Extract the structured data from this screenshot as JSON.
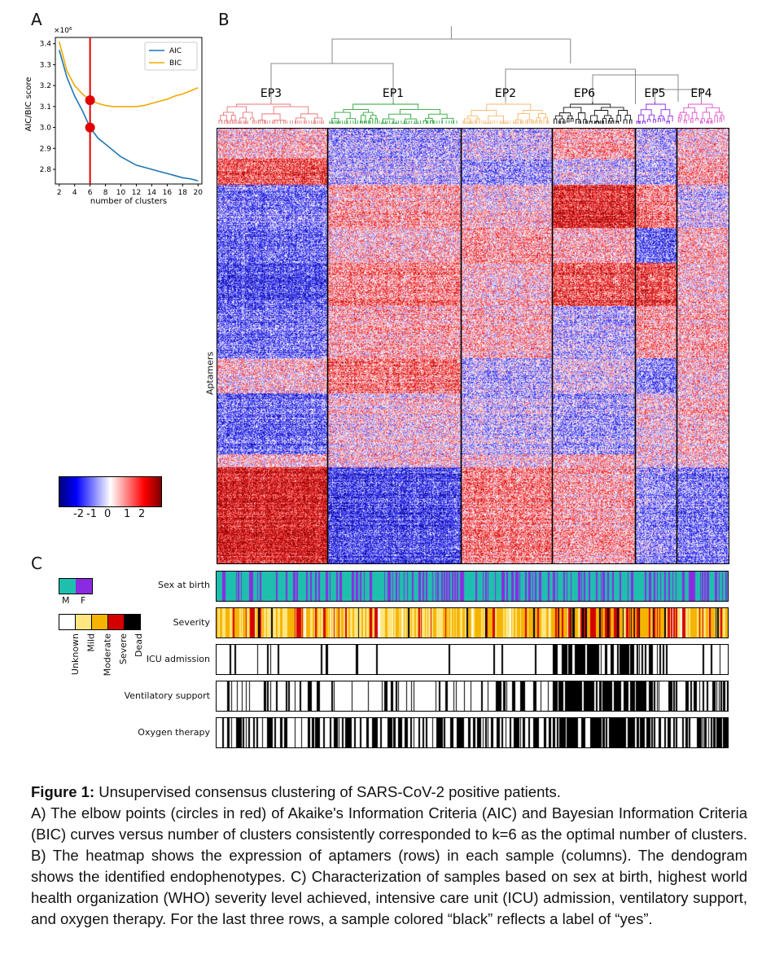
{
  "panels": {
    "a_letter": "A",
    "b_letter": "B",
    "c_letter": "C"
  },
  "panel_a": {
    "chart_data": {
      "type": "line",
      "xlabel": "number of clusters",
      "ylabel": "AIC/BIC score",
      "y_multiplier": "×10⁶",
      "x_ticks": [
        "2",
        "4",
        "6",
        "8",
        "10",
        "12",
        "14",
        "16",
        "18",
        "20"
      ],
      "y_ticks": [
        "3.4",
        "3.3",
        "3.2",
        "3.1",
        "3.0",
        "2.9",
        "2.8"
      ],
      "xlim": [
        1.5,
        20.5
      ],
      "ylim": [
        2.73,
        3.43
      ],
      "series": [
        {
          "name": "AIC",
          "color": "#1f77b4",
          "x": [
            2,
            3,
            4,
            5,
            6,
            7,
            8,
            9,
            10,
            11,
            12,
            13,
            14,
            15,
            16,
            17,
            18,
            19,
            20
          ],
          "y": [
            3.37,
            3.24,
            3.15,
            3.08,
            3.0,
            2.95,
            2.92,
            2.89,
            2.86,
            2.84,
            2.82,
            2.81,
            2.8,
            2.79,
            2.78,
            2.77,
            2.76,
            2.755,
            2.745
          ]
        },
        {
          "name": "BIC",
          "color": "#f5a800",
          "x": [
            2,
            3,
            4,
            5,
            6,
            7,
            8,
            9,
            10,
            11,
            12,
            13,
            14,
            15,
            16,
            17,
            18,
            19,
            20
          ],
          "y": [
            3.41,
            3.27,
            3.2,
            3.16,
            3.13,
            3.115,
            3.105,
            3.1,
            3.1,
            3.1,
            3.1,
            3.105,
            3.115,
            3.125,
            3.135,
            3.15,
            3.16,
            3.175,
            3.19
          ]
        }
      ],
      "optimal_k": 6,
      "elbow_points": [
        {
          "x": 6,
          "y": 3.0
        },
        {
          "x": 6,
          "y": 3.13
        }
      ],
      "legend": [
        "AIC",
        "BIC"
      ]
    }
  },
  "panel_b": {
    "ylabel": "Aptamers",
    "clusters": [
      {
        "name": "EP3",
        "color": "#e8767a",
        "width": 0.217
      },
      {
        "name": "EP1",
        "color": "#2aa53a",
        "width": 0.261
      },
      {
        "name": "EP2",
        "color": "#f7b66a",
        "width": 0.178
      },
      {
        "name": "EP6",
        "color": "#111111",
        "width": 0.162
      },
      {
        "name": "EP5",
        "color": "#8a2be2",
        "width": 0.082
      },
      {
        "name": "EP4",
        "color": "#e256c9",
        "width": 0.1
      }
    ],
    "colorbar": {
      "ticks": [
        "-2",
        "-1",
        "0",
        "1",
        "2"
      ],
      "low": "#0000b0",
      "mid": "#ffffff",
      "high": "#b00000"
    }
  },
  "panel_c": {
    "sex_legend": {
      "labels": [
        "M",
        "F"
      ],
      "colors": [
        "#1fbfae",
        "#8a2be2"
      ]
    },
    "severity_legend": {
      "labels": [
        "Unknown",
        "Mild",
        "Moderate",
        "Severe",
        "Dead"
      ],
      "colors": [
        "#ffffff",
        "#ffe680",
        "#f5b400",
        "#d40000",
        "#000000"
      ]
    },
    "tracks": [
      {
        "label": "Sex at birth"
      },
      {
        "label": "Severity"
      },
      {
        "label": "ICU admission"
      },
      {
        "label": "Ventilatory support"
      },
      {
        "label": "Oxygen therapy"
      }
    ]
  },
  "caption": {
    "title": "Figure 1:",
    "title_rest": " Unsupervised consensus clustering of SARS-CoV-2 positive patients.",
    "body": "A) The elbow points (circles in red) of Akaike's Information Criteria (AIC) and Bayesian Information Criteria (BIC) curves versus number of clusters consistently corresponded to k=6 as the optimal number of clusters. B) The heatmap shows the expression of aptamers (rows) in each sample (columns). The dendogram shows the identified endophenotypes. C)  Characterization of samples based on sex at birth, highest world health organization (WHO) severity level achieved, intensive care unit (ICU) admission, ventilatory support, and oxygen therapy. For the last three rows, a sample colored “black” reflects a label of “yes”."
  }
}
